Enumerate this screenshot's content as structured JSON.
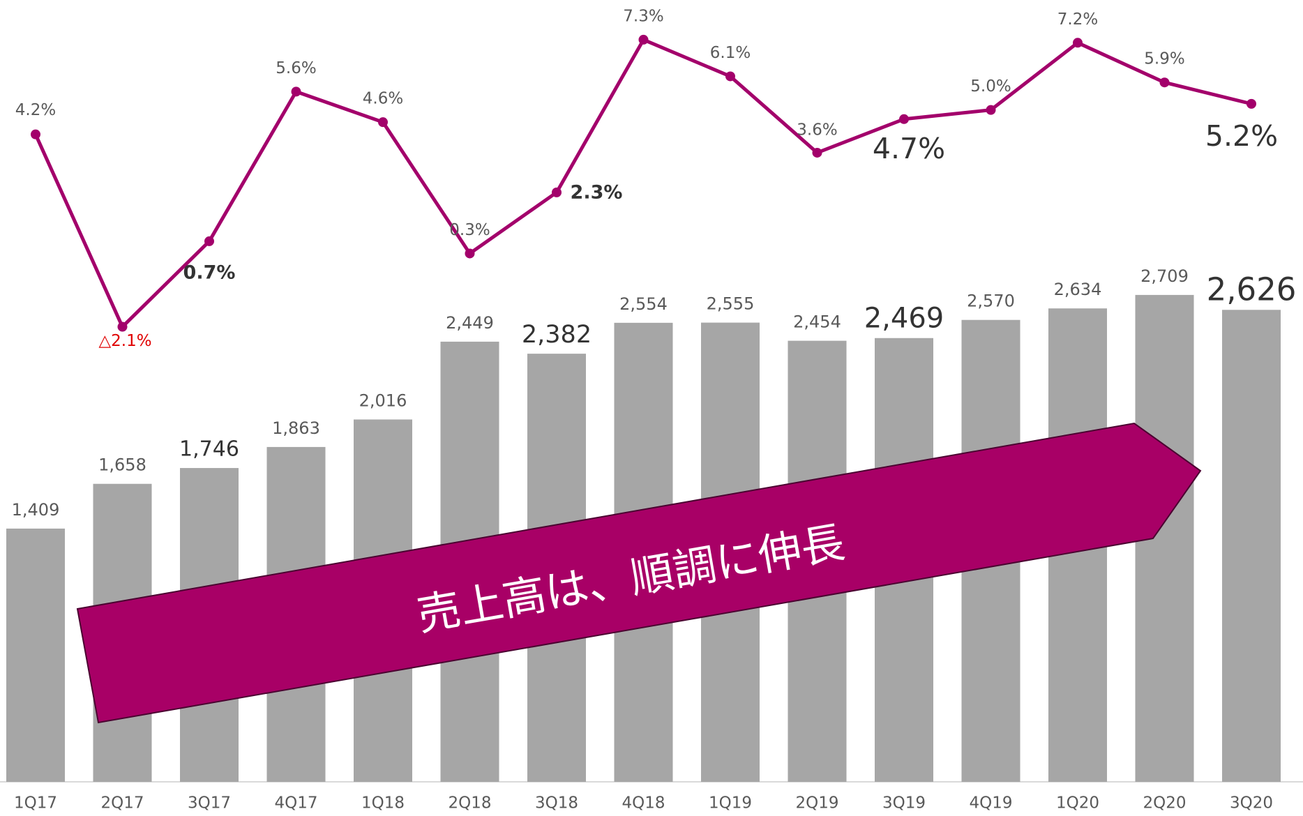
{
  "chart_data": {
    "type": "combo",
    "categories": [
      "1Q17",
      "2Q17",
      "3Q17",
      "4Q17",
      "1Q18",
      "2Q18",
      "3Q18",
      "4Q18",
      "1Q19",
      "2Q19",
      "3Q19",
      "4Q19",
      "1Q20",
      "2Q20",
      "3Q20"
    ],
    "series": [
      {
        "type": "bar",
        "color": "#a6a6a6",
        "values": [
          1409,
          1658,
          1746,
          1863,
          2016,
          2449,
          2382,
          2554,
          2555,
          2454,
          2469,
          2570,
          2634,
          2709,
          2626
        ],
        "value_labels": [
          "1,409",
          "1,658",
          "1,746",
          "1,863",
          "2,016",
          "2,449",
          "2,382",
          "2,554",
          "2,555",
          "2,454",
          "2,469",
          "2,570",
          "2,634",
          "2,709",
          "2,626"
        ]
      },
      {
        "type": "line",
        "axis": "y2",
        "color": "#a3006b",
        "values": [
          4.2,
          -2.1,
          0.7,
          5.6,
          4.6,
          0.3,
          2.3,
          7.3,
          6.1,
          3.6,
          4.7,
          5.0,
          7.2,
          5.9,
          5.2
        ],
        "value_labels": [
          "4.2%",
          "△2.1%",
          "0.7%",
          "5.6%",
          "4.6%",
          "0.3%",
          "2.3%",
          "7.3%",
          "6.1%",
          "3.6%",
          "4.7%",
          "5.0%",
          "7.2%",
          "5.9%",
          "5.2%"
        ]
      }
    ],
    "ylim": [
      0,
      4350
    ],
    "y2lim": [
      -17,
      8.6
    ],
    "annotation": "売上高は、順調に伸長"
  }
}
